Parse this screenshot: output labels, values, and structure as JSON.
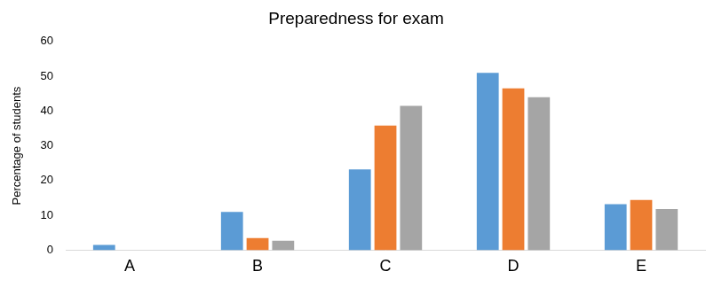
{
  "chart_data": {
    "type": "bar",
    "title": "Preparedness for exam",
    "y_label": "Percentage of students",
    "categories": [
      "A",
      "B",
      "C",
      "D",
      "E"
    ],
    "series": [
      {
        "color": "#5b9bd5",
        "values": [
          1.5,
          11,
          23.2,
          51,
          13.2
        ]
      },
      {
        "color": "#ed7d31",
        "values": [
          0,
          3.5,
          35.8,
          46.5,
          14.4
        ]
      },
      {
        "color": "#a5a5a5",
        "values": [
          0,
          2.7,
          41.5,
          44,
          11.8
        ]
      }
    ],
    "ylim": [
      0,
      60
    ],
    "yticks": [
      0,
      10,
      20,
      30,
      40,
      50,
      60
    ],
    "grid": false
  }
}
